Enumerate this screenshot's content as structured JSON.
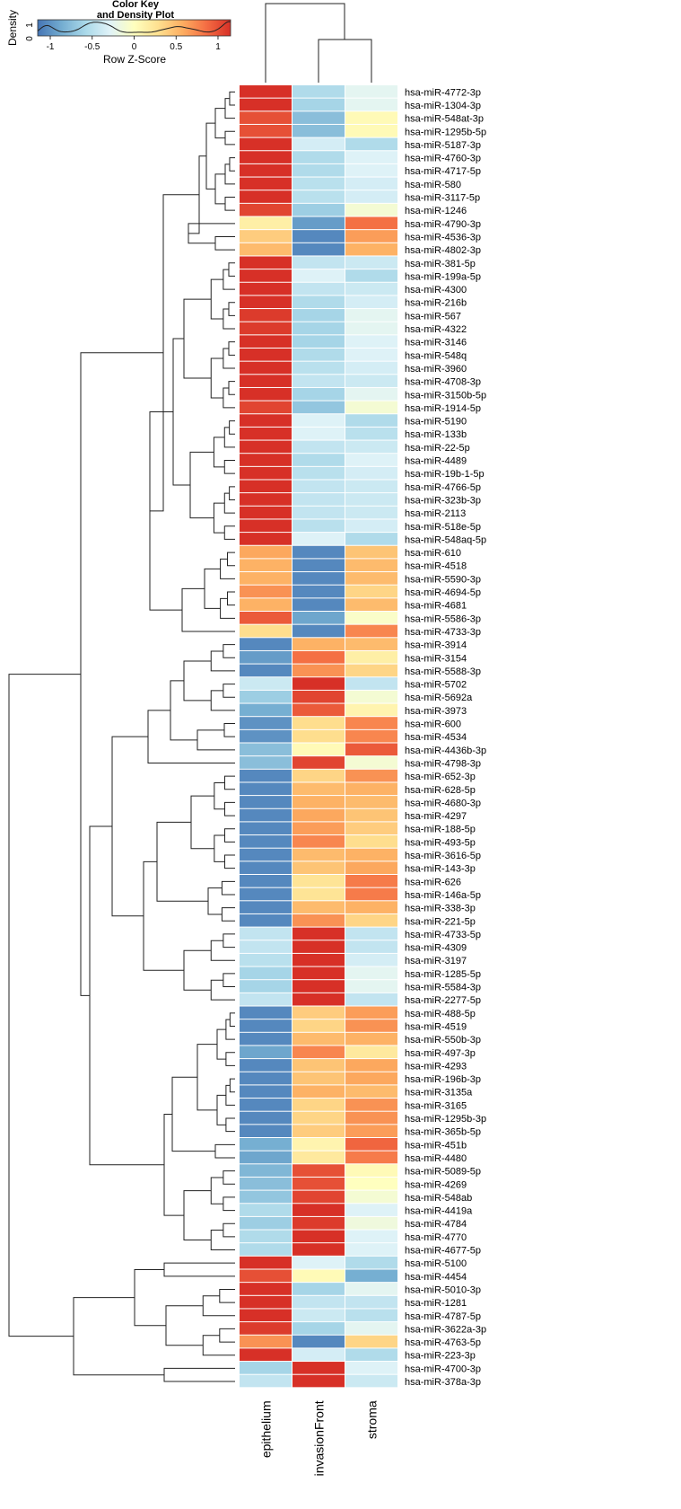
{
  "chart_data": {
    "type": "heatmap",
    "title": "Color Key and Density Plot",
    "color_key": {
      "title_line1": "Color Key",
      "title_line2": "and Density Plot",
      "xlabel": "Row Z-Score",
      "ylabel": "Density",
      "xticks": [
        "-1",
        "-0.5",
        "0",
        "0.5",
        "1"
      ],
      "yticks": [
        "0",
        "1"
      ],
      "range": [
        -1.15,
        1.15
      ],
      "colors": [
        "#4575b4",
        "#74add1",
        "#abd9e9",
        "#e0f3f8",
        "#ffffbf",
        "#fee090",
        "#fdae61",
        "#f46d43",
        "#d73027"
      ]
    },
    "columns": [
      "epithelium",
      "invasionFront",
      "stroma"
    ],
    "rows": [
      {
        "name": "hsa-miR-4772-3p",
        "z": [
          1.15,
          -0.55,
          -0.25
        ]
      },
      {
        "name": "hsa-miR-1304-3p",
        "z": [
          1.15,
          -0.6,
          -0.25
        ]
      },
      {
        "name": "hsa-miR-548at-3p",
        "z": [
          1.0,
          -0.75,
          0.05
        ]
      },
      {
        "name": "hsa-miR-1295b-5p",
        "z": [
          1.0,
          -0.75,
          0.05
        ]
      },
      {
        "name": "hsa-miR-5187-3p",
        "z": [
          1.15,
          -0.35,
          -0.55
        ]
      },
      {
        "name": "hsa-miR-4760-3p",
        "z": [
          1.15,
          -0.55,
          -0.3
        ]
      },
      {
        "name": "hsa-miR-4717-5p",
        "z": [
          1.15,
          -0.55,
          -0.3
        ]
      },
      {
        "name": "hsa-miR-580",
        "z": [
          1.15,
          -0.5,
          -0.35
        ]
      },
      {
        "name": "hsa-miR-3117-5p",
        "z": [
          1.15,
          -0.5,
          -0.35
        ]
      },
      {
        "name": "hsa-miR-1246",
        "z": [
          1.05,
          -0.65,
          -0.1
        ]
      },
      {
        "name": "hsa-miR-4790-3p",
        "z": [
          0.15,
          -0.95,
          0.85
        ]
      },
      {
        "name": "hsa-miR-4536-3p",
        "z": [
          0.4,
          -1.05,
          0.65
        ]
      },
      {
        "name": "hsa-miR-4802-3p",
        "z": [
          0.5,
          -1.05,
          0.55
        ]
      },
      {
        "name": "hsa-miR-381-5p",
        "z": [
          1.15,
          -0.45,
          -0.4
        ]
      },
      {
        "name": "hsa-miR-199a-5p",
        "z": [
          1.15,
          -0.3,
          -0.55
        ]
      },
      {
        "name": "hsa-miR-4300",
        "z": [
          1.15,
          -0.45,
          -0.4
        ]
      },
      {
        "name": "hsa-miR-216b",
        "z": [
          1.15,
          -0.55,
          -0.35
        ]
      },
      {
        "name": "hsa-miR-567",
        "z": [
          1.1,
          -0.6,
          -0.25
        ]
      },
      {
        "name": "hsa-miR-4322",
        "z": [
          1.1,
          -0.6,
          -0.25
        ]
      },
      {
        "name": "hsa-miR-3146",
        "z": [
          1.15,
          -0.6,
          -0.3
        ]
      },
      {
        "name": "hsa-miR-548q",
        "z": [
          1.15,
          -0.55,
          -0.3
        ]
      },
      {
        "name": "hsa-miR-3960",
        "z": [
          1.15,
          -0.5,
          -0.35
        ]
      },
      {
        "name": "hsa-miR-4708-3p",
        "z": [
          1.15,
          -0.45,
          -0.4
        ]
      },
      {
        "name": "hsa-miR-3150b-5p",
        "z": [
          1.15,
          -0.6,
          -0.25
        ]
      },
      {
        "name": "hsa-miR-1914-5p",
        "z": [
          1.05,
          -0.7,
          -0.1
        ]
      },
      {
        "name": "hsa-miR-5190",
        "z": [
          1.15,
          -0.3,
          -0.55
        ]
      },
      {
        "name": "hsa-miR-133b",
        "z": [
          1.15,
          -0.3,
          -0.5
        ]
      },
      {
        "name": "hsa-miR-22-5p",
        "z": [
          1.15,
          -0.45,
          -0.4
        ]
      },
      {
        "name": "hsa-miR-4489",
        "z": [
          1.15,
          -0.55,
          -0.3
        ]
      },
      {
        "name": "hsa-miR-19b-1-5p",
        "z": [
          1.15,
          -0.5,
          -0.35
        ]
      },
      {
        "name": "hsa-miR-4766-5p",
        "z": [
          1.15,
          -0.45,
          -0.4
        ]
      },
      {
        "name": "hsa-miR-323b-3p",
        "z": [
          1.15,
          -0.45,
          -0.4
        ]
      },
      {
        "name": "hsa-miR-2113",
        "z": [
          1.15,
          -0.45,
          -0.4
        ]
      },
      {
        "name": "hsa-miR-518e-5p",
        "z": [
          1.15,
          -0.5,
          -0.35
        ]
      },
      {
        "name": "hsa-miR-548aq-5p",
        "z": [
          1.15,
          -0.3,
          -0.55
        ]
      },
      {
        "name": "hsa-miR-610",
        "z": [
          0.6,
          -1.05,
          0.45
        ]
      },
      {
        "name": "hsa-miR-4518",
        "z": [
          0.55,
          -1.05,
          0.5
        ]
      },
      {
        "name": "hsa-miR-5590-3p",
        "z": [
          0.55,
          -1.05,
          0.5
        ]
      },
      {
        "name": "hsa-miR-4694-5p",
        "z": [
          0.7,
          -1.05,
          0.35
        ]
      },
      {
        "name": "hsa-miR-4681",
        "z": [
          0.55,
          -1.05,
          0.5
        ]
      },
      {
        "name": "hsa-miR-5586-3p",
        "z": [
          0.95,
          -0.9,
          -0.05
        ]
      },
      {
        "name": "hsa-miR-4733-3p",
        "z": [
          0.3,
          -1.05,
          0.75
        ]
      },
      {
        "name": "hsa-miR-3914",
        "z": [
          -1.05,
          0.55,
          0.5
        ]
      },
      {
        "name": "hsa-miR-3154",
        "z": [
          -0.95,
          0.85,
          0.15
        ]
      },
      {
        "name": "hsa-miR-5588-3p",
        "z": [
          -1.05,
          0.7,
          0.35
        ]
      },
      {
        "name": "hsa-miR-5702",
        "z": [
          -0.4,
          1.15,
          -0.45
        ]
      },
      {
        "name": "hsa-miR-5692a",
        "z": [
          -0.65,
          1.05,
          -0.1
        ]
      },
      {
        "name": "hsa-miR-3973",
        "z": [
          -0.85,
          0.95,
          0.1
        ]
      },
      {
        "name": "hsa-miR-600",
        "z": [
          -1.0,
          0.3,
          0.75
        ]
      },
      {
        "name": "hsa-miR-4534",
        "z": [
          -1.0,
          0.3,
          0.75
        ]
      },
      {
        "name": "hsa-miR-4436b-3p",
        "z": [
          -0.75,
          0.05,
          0.95
        ]
      },
      {
        "name": "hsa-miR-4798-3p",
        "z": [
          -0.75,
          1.05,
          -0.1
        ]
      },
      {
        "name": "hsa-miR-652-3p",
        "z": [
          -1.05,
          0.35,
          0.7
        ]
      },
      {
        "name": "hsa-miR-628-5p",
        "z": [
          -1.05,
          0.5,
          0.55
        ]
      },
      {
        "name": "hsa-miR-4680-3p",
        "z": [
          -1.05,
          0.55,
          0.5
        ]
      },
      {
        "name": "hsa-miR-4297",
        "z": [
          -1.05,
          0.6,
          0.45
        ]
      },
      {
        "name": "hsa-miR-188-5p",
        "z": [
          -1.05,
          0.65,
          0.4
        ]
      },
      {
        "name": "hsa-miR-493-5p",
        "z": [
          -1.05,
          0.75,
          0.3
        ]
      },
      {
        "name": "hsa-miR-3616-5p",
        "z": [
          -1.05,
          0.5,
          0.55
        ]
      },
      {
        "name": "hsa-miR-143-3p",
        "z": [
          -1.05,
          0.45,
          0.6
        ]
      },
      {
        "name": "hsa-miR-626",
        "z": [
          -1.05,
          0.25,
          0.8
        ]
      },
      {
        "name": "hsa-miR-146a-5p",
        "z": [
          -1.05,
          0.25,
          0.8
        ]
      },
      {
        "name": "hsa-miR-338-3p",
        "z": [
          -1.05,
          0.5,
          0.55
        ]
      },
      {
        "name": "hsa-miR-221-5p",
        "z": [
          -1.05,
          0.7,
          0.35
        ]
      },
      {
        "name": "hsa-miR-4733-5p",
        "z": [
          -0.45,
          1.15,
          -0.45
        ]
      },
      {
        "name": "hsa-miR-4309",
        "z": [
          -0.45,
          1.15,
          -0.45
        ]
      },
      {
        "name": "hsa-miR-3197",
        "z": [
          -0.5,
          1.15,
          -0.35
        ]
      },
      {
        "name": "hsa-miR-1285-5p",
        "z": [
          -0.6,
          1.15,
          -0.25
        ]
      },
      {
        "name": "hsa-miR-5584-3p",
        "z": [
          -0.6,
          1.15,
          -0.25
        ]
      },
      {
        "name": "hsa-miR-2277-5p",
        "z": [
          -0.45,
          1.15,
          -0.45
        ]
      },
      {
        "name": "hsa-miR-488-5p",
        "z": [
          -1.05,
          0.4,
          0.65
        ]
      },
      {
        "name": "hsa-miR-4519",
        "z": [
          -1.05,
          0.35,
          0.7
        ]
      },
      {
        "name": "hsa-miR-550b-3p",
        "z": [
          -1.05,
          0.5,
          0.55
        ]
      },
      {
        "name": "hsa-miR-497-3p",
        "z": [
          -0.9,
          0.75,
          0.2
        ]
      },
      {
        "name": "hsa-miR-4293",
        "z": [
          -1.05,
          0.45,
          0.6
        ]
      },
      {
        "name": "hsa-miR-196b-3p",
        "z": [
          -1.05,
          0.45,
          0.6
        ]
      },
      {
        "name": "hsa-miR-3135a",
        "z": [
          -1.05,
          0.55,
          0.5
        ]
      },
      {
        "name": "hsa-miR-3165",
        "z": [
          -1.05,
          0.35,
          0.7
        ]
      },
      {
        "name": "hsa-miR-1295b-3p",
        "z": [
          -1.05,
          0.35,
          0.7
        ]
      },
      {
        "name": "hsa-miR-365b-5p",
        "z": [
          -1.05,
          0.4,
          0.65
        ]
      },
      {
        "name": "hsa-miR-451b",
        "z": [
          -0.85,
          0.1,
          0.9
        ]
      },
      {
        "name": "hsa-miR-4480",
        "z": [
          -0.9,
          0.2,
          0.8
        ]
      },
      {
        "name": "hsa-miR-5089-5p",
        "z": [
          -0.8,
          1.0,
          0.05
        ]
      },
      {
        "name": "hsa-miR-4269",
        "z": [
          -0.75,
          1.0,
          0.0
        ]
      },
      {
        "name": "hsa-miR-548ab",
        "z": [
          -0.7,
          1.05,
          -0.1
        ]
      },
      {
        "name": "hsa-miR-4419a",
        "z": [
          -0.55,
          1.15,
          -0.3
        ]
      },
      {
        "name": "hsa-miR-4784",
        "z": [
          -0.65,
          1.1,
          -0.15
        ]
      },
      {
        "name": "hsa-miR-4770",
        "z": [
          -0.55,
          1.15,
          -0.3
        ]
      },
      {
        "name": "hsa-miR-4677-5p",
        "z": [
          -0.55,
          1.15,
          -0.3
        ]
      },
      {
        "name": "hsa-miR-5100",
        "z": [
          1.15,
          -0.3,
          -0.55
        ]
      },
      {
        "name": "hsa-miR-4454",
        "z": [
          1.0,
          0.05,
          -0.85
        ]
      },
      {
        "name": "hsa-miR-5010-3p",
        "z": [
          1.15,
          -0.6,
          -0.25
        ]
      },
      {
        "name": "hsa-miR-1281",
        "z": [
          1.15,
          -0.45,
          -0.45
        ]
      },
      {
        "name": "hsa-miR-4787-5p",
        "z": [
          1.15,
          -0.4,
          -0.5
        ]
      },
      {
        "name": "hsa-miR-3622a-3p",
        "z": [
          1.1,
          -0.6,
          -0.25
        ]
      },
      {
        "name": "hsa-miR-4763-5p",
        "z": [
          0.7,
          -1.05,
          0.35
        ]
      },
      {
        "name": "hsa-miR-223-3p",
        "z": [
          1.15,
          -0.35,
          -0.55
        ]
      },
      {
        "name": "hsa-miR-4700-3p",
        "z": [
          -0.6,
          1.15,
          -0.3
        ]
      },
      {
        "name": "hsa-miR-378a-3p",
        "z": [
          -0.45,
          1.15,
          -0.4
        ]
      }
    ],
    "column_dendrogram": "epithelium | (invasionFront, stroma)",
    "row_dendrogram": "hierarchical clustering of rows (shown at left)"
  }
}
